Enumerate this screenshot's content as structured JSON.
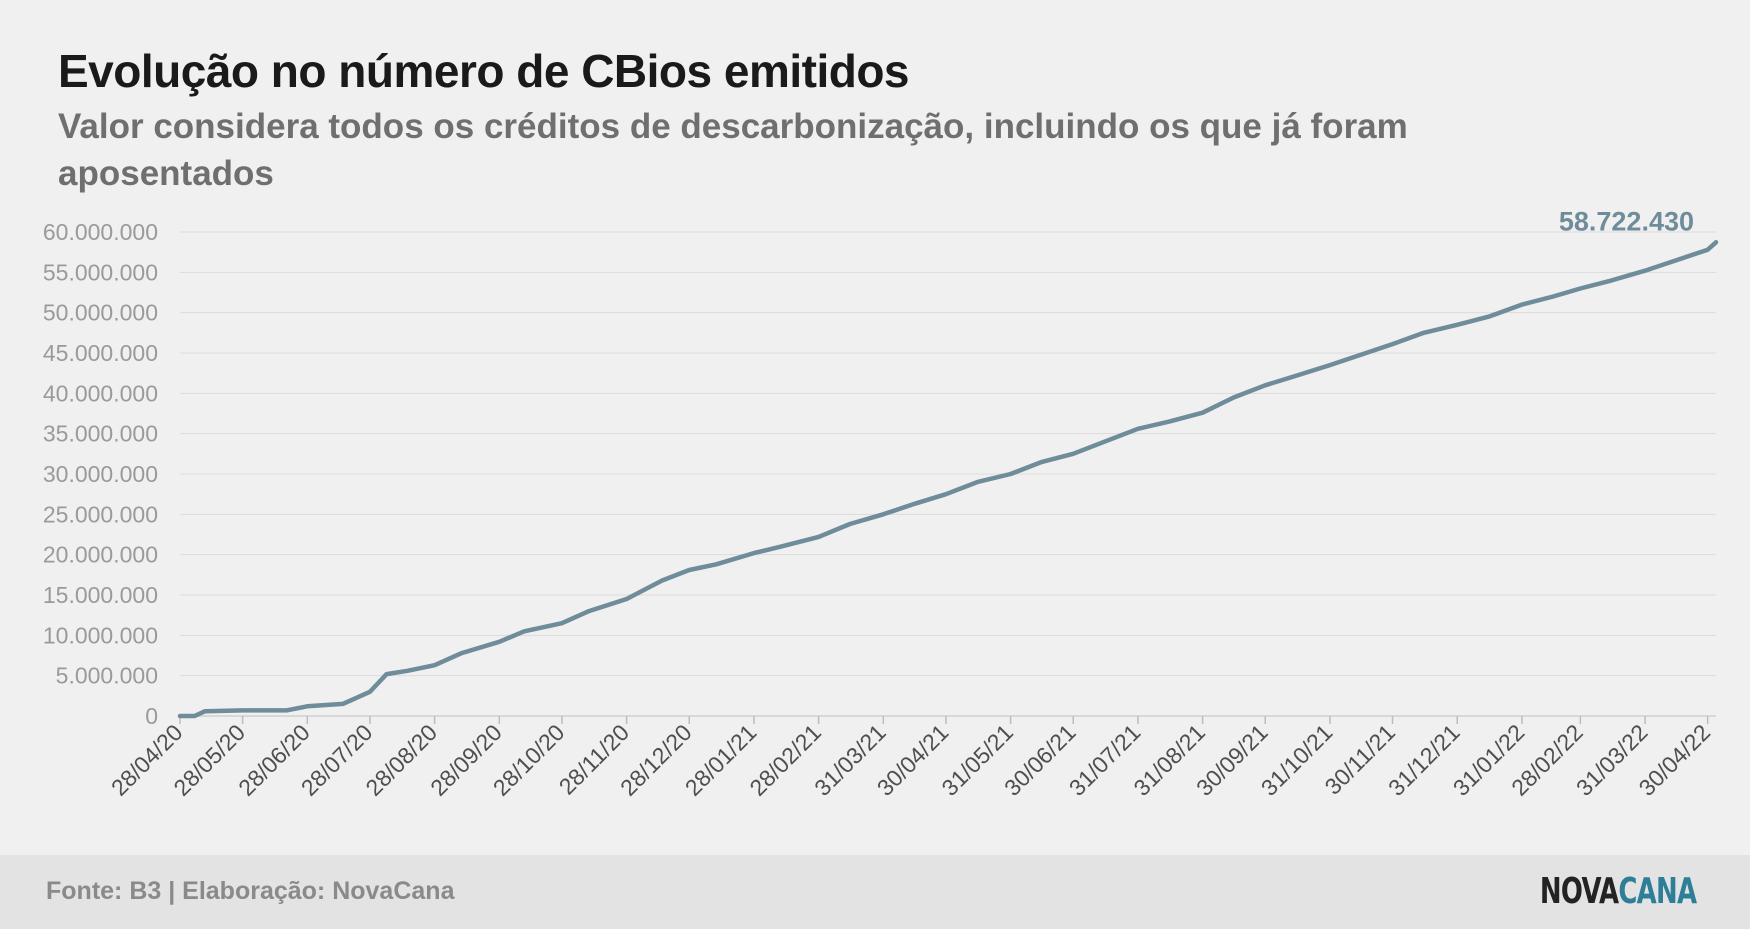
{
  "title": "Evolução no número de CBios emitidos",
  "subtitle": "Valor considera todos os créditos de descarbonização, incluindo os que já foram aposentados",
  "footer": {
    "source": "Fonte: B3 | Elaboração: NovaCana",
    "logo_part1": "NOVA",
    "logo_part2": "CANA"
  },
  "colors": {
    "line": "#6f8c9b",
    "grid": "#dcdcdc",
    "tick_text": "#9a9a9a",
    "logo_accent": "#2e7e98"
  },
  "chart_data": {
    "type": "line",
    "title": "Evolução no número de CBios emitidos",
    "xlabel": "",
    "ylabel": "",
    "ylim": [
      0,
      60000000
    ],
    "yticks": [
      0,
      5000000,
      10000000,
      15000000,
      20000000,
      25000000,
      30000000,
      35000000,
      40000000,
      45000000,
      50000000,
      55000000,
      60000000
    ],
    "ytick_labels": [
      "0",
      "5.000.000",
      "10.000.000",
      "15.000.000",
      "20.000.000",
      "25.000.000",
      "30.000.000",
      "35.000.000",
      "40.000.000",
      "45.000.000",
      "50.000.000",
      "55.000.000",
      "60.000.000"
    ],
    "xlim": [
      "2020-04-28",
      "2022-05-04"
    ],
    "xticks": [
      "2020-04-28",
      "2020-05-28",
      "2020-06-28",
      "2020-07-28",
      "2020-08-28",
      "2020-09-28",
      "2020-10-28",
      "2020-11-28",
      "2020-12-28",
      "2021-01-28",
      "2021-02-28",
      "2021-03-31",
      "2021-04-30",
      "2021-05-31",
      "2021-06-30",
      "2021-07-31",
      "2021-08-31",
      "2021-09-30",
      "2021-10-31",
      "2021-11-30",
      "2021-12-31",
      "2022-01-31",
      "2022-02-28",
      "2022-03-31",
      "2022-04-30"
    ],
    "xtick_labels": [
      "28/04/20",
      "28/05/20",
      "28/06/20",
      "28/07/20",
      "28/08/20",
      "28/09/20",
      "28/10/20",
      "28/11/20",
      "28/12/20",
      "28/01/21",
      "28/02/21",
      "31/03/21",
      "30/04/21",
      "31/05/21",
      "30/06/21",
      "31/07/21",
      "31/08/21",
      "30/09/21",
      "31/10/21",
      "30/11/21",
      "31/12/21",
      "31/01/22",
      "28/02/22",
      "31/03/22",
      "30/04/22"
    ],
    "grid": true,
    "legend": "none",
    "series": [
      {
        "x": [
          "2020-04-28",
          "2020-05-05",
          "2020-05-10",
          "2020-05-28",
          "2020-06-18",
          "2020-06-28",
          "2020-07-15",
          "2020-07-28",
          "2020-08-05",
          "2020-08-15",
          "2020-08-28",
          "2020-09-10",
          "2020-09-28",
          "2020-10-10",
          "2020-10-28",
          "2020-11-10",
          "2020-11-28",
          "2020-12-15",
          "2020-12-28",
          "2021-01-10",
          "2021-01-28",
          "2021-02-10",
          "2021-02-28",
          "2021-03-15",
          "2021-03-31",
          "2021-04-15",
          "2021-04-30",
          "2021-05-15",
          "2021-05-31",
          "2021-06-15",
          "2021-06-30",
          "2021-07-15",
          "2021-07-31",
          "2021-08-15",
          "2021-08-31",
          "2021-09-15",
          "2021-09-30",
          "2021-10-15",
          "2021-10-31",
          "2021-11-15",
          "2021-11-30",
          "2021-12-15",
          "2021-12-31",
          "2022-01-15",
          "2022-01-31",
          "2022-02-15",
          "2022-02-28",
          "2022-03-15",
          "2022-03-31",
          "2022-04-15",
          "2022-04-30",
          "2022-05-04"
        ],
        "y": [
          0,
          0,
          600000,
          700000,
          700000,
          1200000,
          1500000,
          3000000,
          5200000,
          5600000,
          6300000,
          7800000,
          9200000,
          10500000,
          11500000,
          13000000,
          14500000,
          16800000,
          18100000,
          18800000,
          20200000,
          21000000,
          22200000,
          23800000,
          25000000,
          26300000,
          27500000,
          29000000,
          30000000,
          31500000,
          32500000,
          34000000,
          35600000,
          36500000,
          37600000,
          39500000,
          41000000,
          42200000,
          43500000,
          44800000,
          46100000,
          47500000,
          48500000,
          49500000,
          51000000,
          52000000,
          53000000,
          54000000,
          55200000,
          56500000,
          57800000,
          58722430
        ]
      }
    ],
    "annotations": [
      {
        "text": "58.722.430",
        "x": "2022-05-04",
        "y": 58722430
      }
    ]
  }
}
